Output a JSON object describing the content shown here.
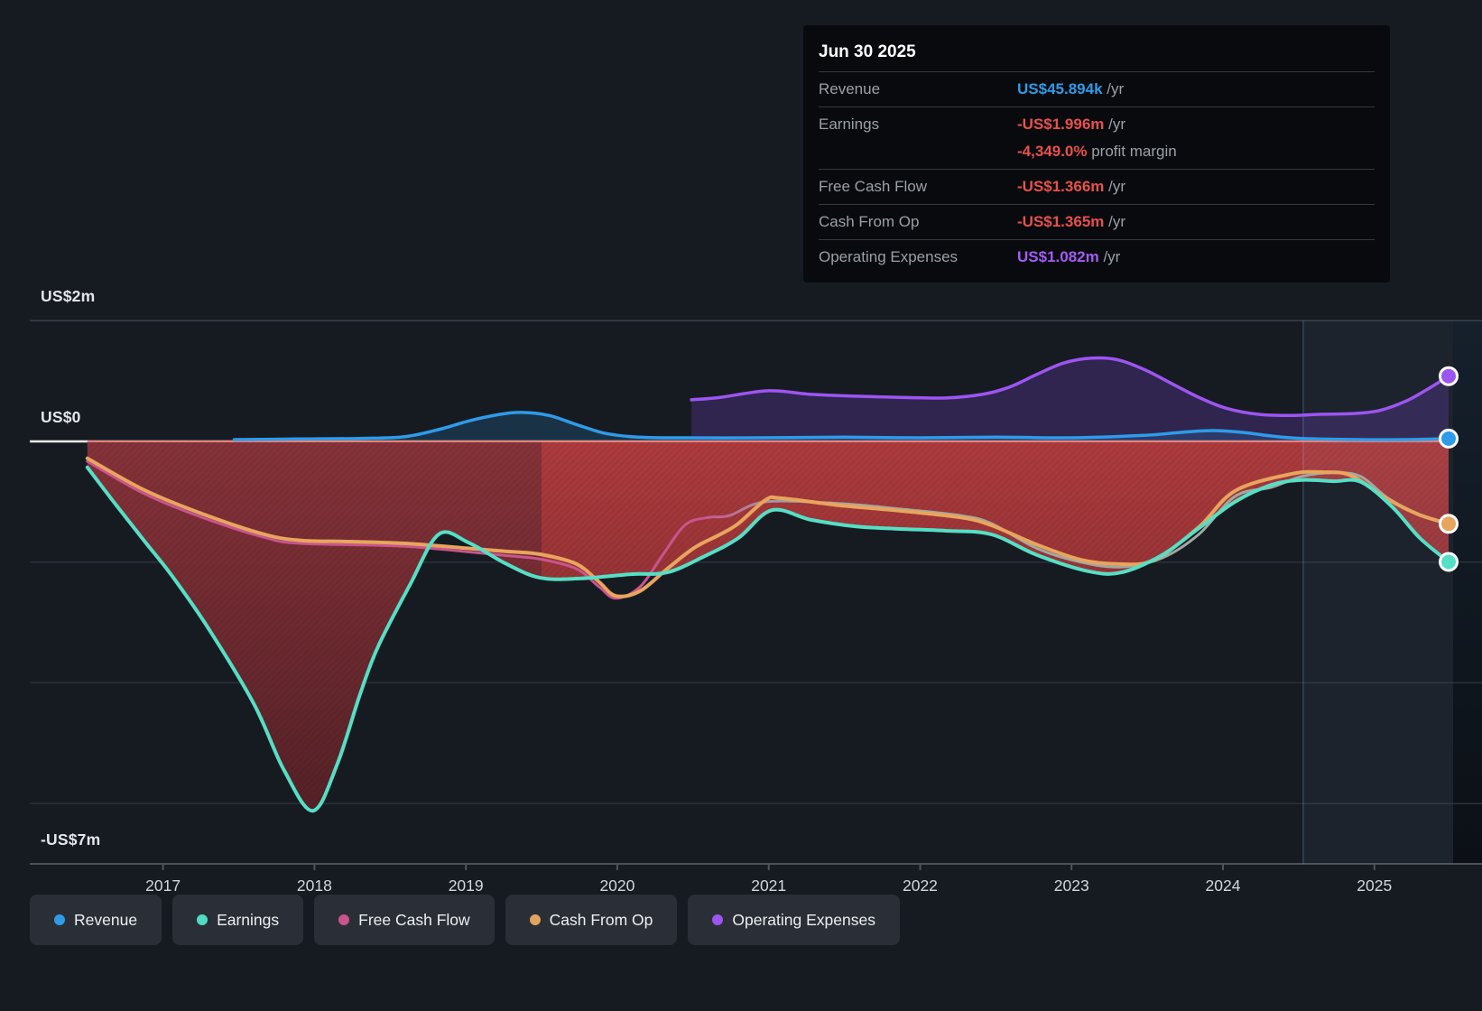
{
  "tooltip": {
    "date": "Jun 30 2025",
    "rows": [
      {
        "id": "revenue",
        "label": "Revenue",
        "value": "US$45.894k",
        "suffix": " /yr",
        "color": "#2f9be8"
      },
      {
        "id": "earnings",
        "label": "Earnings",
        "value": "-US$1.996m",
        "suffix": " /yr",
        "color": "#e8514b",
        "sub": {
          "value": "-4,349.0%",
          "text": " profit margin",
          "color": "#e8514b"
        }
      },
      {
        "id": "free-cash-flow",
        "label": "Free Cash Flow",
        "value": "-US$1.366m",
        "suffix": " /yr",
        "color": "#e8514b"
      },
      {
        "id": "cash-from-op",
        "label": "Cash From Op",
        "value": "-US$1.365m",
        "suffix": " /yr",
        "color": "#e8514b"
      },
      {
        "id": "operating-expenses",
        "label": "Operating Expenses",
        "value": "US$1.082m",
        "suffix": " /yr",
        "color": "#a45cf5"
      }
    ]
  },
  "legend": {
    "items": [
      {
        "id": "revenue",
        "label": "Revenue",
        "color": "#2f9be8"
      },
      {
        "id": "earnings",
        "label": "Earnings",
        "color": "#4fdcc3"
      },
      {
        "id": "free-cash-flow",
        "label": "Free Cash Flow",
        "color": "#c9548e"
      },
      {
        "id": "cash-from-op",
        "label": "Cash From Op",
        "color": "#e0a45f"
      },
      {
        "id": "operating-expenses",
        "label": "Operating Expenses",
        "color": "#9d55f2"
      }
    ]
  },
  "chart_data": {
    "type": "line",
    "unit": "US$ millions",
    "x_domain": [
      2016.12,
      2025.52
    ],
    "y_domain": [
      -7,
      2
    ],
    "grid_on": true,
    "y_axis_labels": [
      {
        "v": 2,
        "text": "US$2m"
      },
      {
        "v": 0,
        "text": "US$0"
      },
      {
        "v": -7,
        "text": "-US$7m"
      }
    ],
    "y_gridlines": [
      2,
      -2,
      -4,
      -6
    ],
    "y_axis_bottom": -7,
    "x_tick_years": [
      "2017",
      "2018",
      "2019",
      "2020",
      "2021",
      "2022",
      "2023",
      "2024",
      "2025"
    ],
    "highlight_band": {
      "from": 2024.53,
      "to": 2025.52
    },
    "loss_area": {
      "series": "Earnings",
      "split_t": 2019.5,
      "left_colors": [
        "#8a333a",
        "#4f1f24"
      ],
      "right_colors": [
        "#b33c3e",
        "#6b2428"
      ],
      "zero_edge_color": "#e2837b"
    },
    "series": [
      {
        "name": "Free Cash Flow",
        "color": "#c9548e",
        "color_late": "#9fa8a2",
        "width": 3,
        "end_dot": false,
        "points": [
          [
            2016.5,
            -0.33
          ],
          [
            2016.88,
            -0.87
          ],
          [
            2017.27,
            -1.27
          ],
          [
            2017.67,
            -1.59
          ],
          [
            2017.91,
            -1.69
          ],
          [
            2018.6,
            -1.74
          ],
          [
            2019.26,
            -1.89
          ],
          [
            2019.49,
            -1.95
          ],
          [
            2019.73,
            -2.11
          ],
          [
            2019.88,
            -2.41
          ],
          [
            2019.99,
            -2.6
          ],
          [
            2020.15,
            -2.41
          ],
          [
            2020.3,
            -1.88
          ],
          [
            2020.45,
            -1.38
          ],
          [
            2020.6,
            -1.26
          ],
          [
            2020.74,
            -1.23
          ],
          [
            2020.98,
            -1.0
          ],
          [
            2021.47,
            -1.03
          ],
          [
            2021.87,
            -1.12
          ],
          [
            2022.27,
            -1.23
          ],
          [
            2022.47,
            -1.36
          ],
          [
            2022.77,
            -1.77
          ],
          [
            2023.06,
            -2.0
          ],
          [
            2023.33,
            -2.08
          ],
          [
            2023.6,
            -1.93
          ],
          [
            2023.84,
            -1.54
          ],
          [
            2024.08,
            -0.91
          ],
          [
            2024.32,
            -0.76
          ],
          [
            2024.52,
            -0.58
          ],
          [
            2024.73,
            -0.52
          ],
          [
            2024.91,
            -0.58
          ],
          [
            2025.09,
            -0.94
          ],
          [
            2025.29,
            -1.2
          ],
          [
            2025.49,
            -1.366
          ]
        ]
      },
      {
        "name": "Cash From Op",
        "color": "#e8a55d",
        "width": 4,
        "end_dot": true,
        "points": [
          [
            2016.5,
            -0.28
          ],
          [
            2016.88,
            -0.81
          ],
          [
            2017.27,
            -1.21
          ],
          [
            2017.67,
            -1.54
          ],
          [
            2017.91,
            -1.64
          ],
          [
            2018.24,
            -1.66
          ],
          [
            2018.6,
            -1.69
          ],
          [
            2018.96,
            -1.76
          ],
          [
            2019.26,
            -1.82
          ],
          [
            2019.49,
            -1.87
          ],
          [
            2019.73,
            -2.03
          ],
          [
            2019.88,
            -2.33
          ],
          [
            2019.99,
            -2.56
          ],
          [
            2020.15,
            -2.48
          ],
          [
            2020.33,
            -2.11
          ],
          [
            2020.51,
            -1.76
          ],
          [
            2020.68,
            -1.54
          ],
          [
            2020.8,
            -1.36
          ],
          [
            2020.98,
            -0.97
          ],
          [
            2021.08,
            -0.94
          ],
          [
            2021.47,
            -1.06
          ],
          [
            2021.87,
            -1.15
          ],
          [
            2022.27,
            -1.26
          ],
          [
            2022.47,
            -1.39
          ],
          [
            2022.77,
            -1.71
          ],
          [
            2023.06,
            -1.96
          ],
          [
            2023.3,
            -2.03
          ],
          [
            2023.54,
            -1.97
          ],
          [
            2023.84,
            -1.42
          ],
          [
            2024.08,
            -0.82
          ],
          [
            2024.45,
            -0.54
          ],
          [
            2024.67,
            -0.51
          ],
          [
            2024.85,
            -0.57
          ],
          [
            2025.09,
            -0.96
          ],
          [
            2025.29,
            -1.21
          ],
          [
            2025.49,
            -1.365
          ]
        ]
      },
      {
        "name": "Earnings",
        "color": "#55dfc5",
        "width": 4,
        "end_dot": true,
        "fill": "loss",
        "points": [
          [
            2016.5,
            -0.43
          ],
          [
            2016.68,
            -1.02
          ],
          [
            2016.88,
            -1.66
          ],
          [
            2017.06,
            -2.23
          ],
          [
            2017.3,
            -3.1
          ],
          [
            2017.6,
            -4.35
          ],
          [
            2017.8,
            -5.45
          ],
          [
            2017.99,
            -6.12
          ],
          [
            2018.15,
            -5.35
          ],
          [
            2018.3,
            -4.2
          ],
          [
            2018.42,
            -3.4
          ],
          [
            2018.63,
            -2.38
          ],
          [
            2018.82,
            -1.54
          ],
          [
            2019.02,
            -1.68
          ],
          [
            2019.26,
            -2.02
          ],
          [
            2019.49,
            -2.26
          ],
          [
            2019.76,
            -2.27
          ],
          [
            2020.09,
            -2.2
          ],
          [
            2020.33,
            -2.17
          ],
          [
            2020.57,
            -1.91
          ],
          [
            2020.8,
            -1.6
          ],
          [
            2021.02,
            -1.14
          ],
          [
            2021.28,
            -1.3
          ],
          [
            2021.58,
            -1.41
          ],
          [
            2021.87,
            -1.45
          ],
          [
            2022.17,
            -1.48
          ],
          [
            2022.47,
            -1.54
          ],
          [
            2022.77,
            -1.88
          ],
          [
            2023.11,
            -2.15
          ],
          [
            2023.33,
            -2.17
          ],
          [
            2023.6,
            -1.88
          ],
          [
            2023.84,
            -1.44
          ],
          [
            2024.08,
            -1.0
          ],
          [
            2024.32,
            -0.72
          ],
          [
            2024.52,
            -0.64
          ],
          [
            2024.73,
            -0.66
          ],
          [
            2024.91,
            -0.67
          ],
          [
            2025.12,
            -1.09
          ],
          [
            2025.3,
            -1.6
          ],
          [
            2025.49,
            -1.996
          ]
        ]
      },
      {
        "name": "Revenue",
        "color": "#2f9be8",
        "width": 3.5,
        "end_dot": true,
        "fill": "zero",
        "fill_color": "rgba(42,125,190,0.24)",
        "points": [
          [
            2017.47,
            0.03
          ],
          [
            2017.89,
            0.04
          ],
          [
            2018.3,
            0.05
          ],
          [
            2018.6,
            0.08
          ],
          [
            2018.84,
            0.21
          ],
          [
            2019.02,
            0.34
          ],
          [
            2019.23,
            0.45
          ],
          [
            2019.37,
            0.48
          ],
          [
            2019.55,
            0.43
          ],
          [
            2019.73,
            0.28
          ],
          [
            2019.91,
            0.14
          ],
          [
            2020.09,
            0.08
          ],
          [
            2020.33,
            0.06
          ],
          [
            2020.9,
            0.06
          ],
          [
            2021.5,
            0.07
          ],
          [
            2022.0,
            0.06
          ],
          [
            2022.5,
            0.07
          ],
          [
            2023.0,
            0.06
          ],
          [
            2023.48,
            0.1
          ],
          [
            2023.72,
            0.15
          ],
          [
            2023.93,
            0.18
          ],
          [
            2024.13,
            0.15
          ],
          [
            2024.32,
            0.09
          ],
          [
            2024.52,
            0.05
          ],
          [
            2024.9,
            0.03
          ],
          [
            2025.2,
            0.03
          ],
          [
            2025.49,
            0.046
          ]
        ]
      },
      {
        "name": "Operating Expenses",
        "color": "#9d55f2",
        "width": 3.5,
        "end_dot": true,
        "fill": "zero",
        "fill_color": "rgba(106,63,184,0.30)",
        "points": [
          [
            2020.49,
            0.69
          ],
          [
            2020.68,
            0.73
          ],
          [
            2021.0,
            0.84
          ],
          [
            2021.28,
            0.78
          ],
          [
            2021.58,
            0.75
          ],
          [
            2021.87,
            0.73
          ],
          [
            2022.17,
            0.72
          ],
          [
            2022.41,
            0.78
          ],
          [
            2022.59,
            0.9
          ],
          [
            2022.77,
            1.11
          ],
          [
            2022.95,
            1.3
          ],
          [
            2023.13,
            1.38
          ],
          [
            2023.31,
            1.35
          ],
          [
            2023.49,
            1.18
          ],
          [
            2023.66,
            0.96
          ],
          [
            2023.84,
            0.73
          ],
          [
            2024.02,
            0.55
          ],
          [
            2024.23,
            0.45
          ],
          [
            2024.44,
            0.43
          ],
          [
            2024.65,
            0.45
          ],
          [
            2024.85,
            0.46
          ],
          [
            2025.03,
            0.51
          ],
          [
            2025.21,
            0.67
          ],
          [
            2025.36,
            0.88
          ],
          [
            2025.49,
            1.082
          ]
        ]
      }
    ]
  }
}
